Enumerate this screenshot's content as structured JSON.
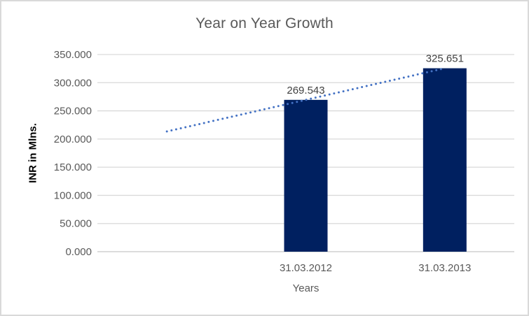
{
  "chart_data": {
    "type": "bar",
    "title": "Year on Year Growth",
    "xlabel": "Years",
    "ylabel": "INR in Mlns.",
    "categories": [
      "31.03.2012",
      "31.03.2013"
    ],
    "values": [
      269.543,
      325.651
    ],
    "data_labels": [
      "269.543",
      "325.651"
    ],
    "ylim": [
      0,
      350
    ],
    "ytick_step": 50,
    "ytick_labels": [
      "0.000",
      "50.000",
      "100.000",
      "150.000",
      "200.000",
      "250.000",
      "300.000",
      "350.000"
    ],
    "grid": true,
    "legend_position": "none",
    "category_slots": 3,
    "bar_slots": [
      1,
      2
    ],
    "trendline": {
      "style": "dotted",
      "start_slot": 0,
      "end_slot": 2,
      "start_value": 213.435,
      "end_value": 325.651,
      "color": "#4472C4"
    },
    "colors": {
      "bar": "#002060",
      "gridline": "#D9D9D9",
      "axis_line": "#C6C6C6",
      "title_text": "#595959",
      "tick_text": "#595959",
      "data_label_text": "#404040",
      "border": "#D9D9D9"
    }
  }
}
